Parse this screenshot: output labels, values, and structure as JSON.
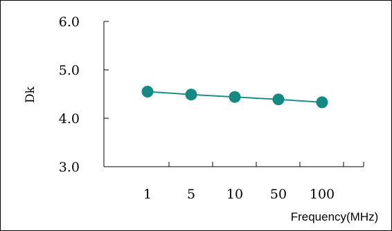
{
  "chart_data": {
    "type": "line",
    "categories": [
      "1",
      "5",
      "10",
      "50",
      "100"
    ],
    "series": [
      {
        "values": [
          4.55,
          4.49,
          4.44,
          4.39,
          4.33
        ]
      }
    ],
    "yticks": [
      "3.0",
      "4.0",
      "5.0",
      "6.0"
    ],
    "ylim": [
      3.0,
      6.0
    ],
    "xlabel": "Frequency(MHz)",
    "ylabel": "Dk",
    "grid": false,
    "legend": "none",
    "colors": {
      "line": "#1a8f8a",
      "marker": "#148a82",
      "axis": "#000000"
    }
  }
}
